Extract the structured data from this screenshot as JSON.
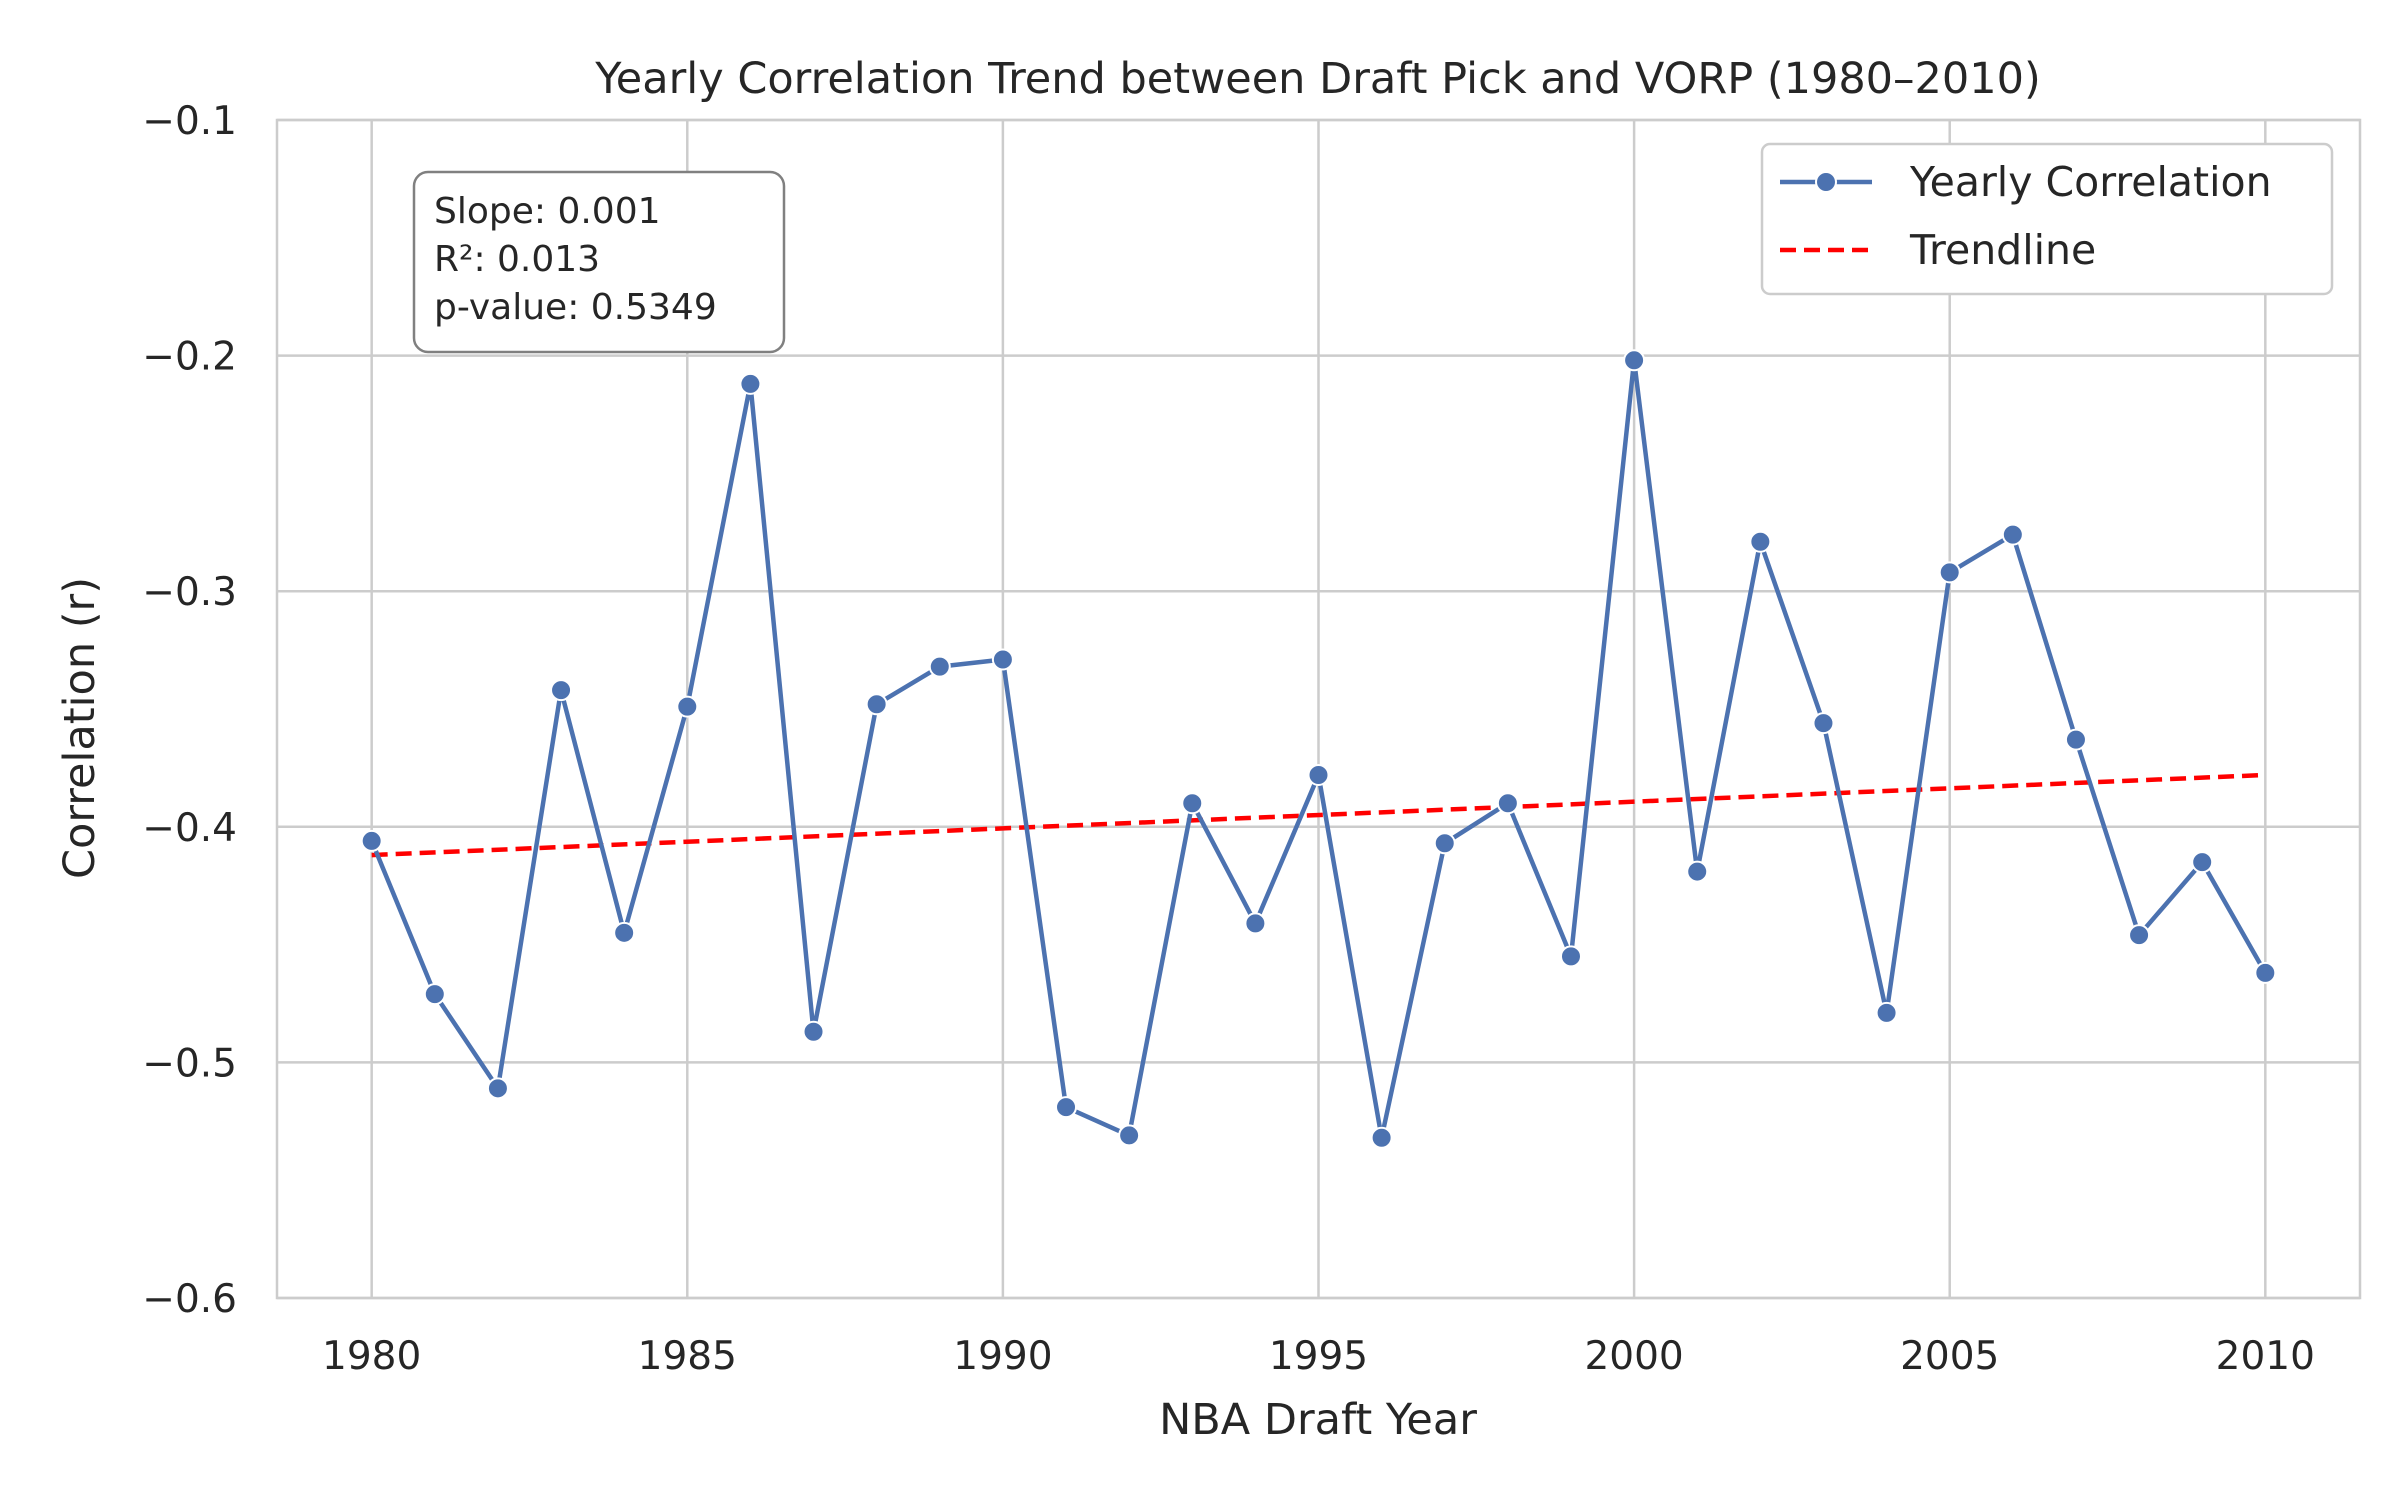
{
  "chart_data": {
    "type": "line",
    "title": "Yearly Correlation Trend between Draft Pick and VORP (1980–2010)",
    "xlabel": "NBA Draft Year",
    "ylabel": "Correlation (r)",
    "xlim": [
      1978.5,
      2011.5
    ],
    "ylim": [
      -0.6,
      -0.1
    ],
    "xticks": [
      1980,
      1985,
      1990,
      1995,
      2000,
      2005,
      2010
    ],
    "yticks": [
      -0.6,
      -0.5,
      -0.4,
      -0.3,
      -0.2,
      -0.1
    ],
    "yticklabels": [
      "−0.6",
      "−0.5",
      "−0.4",
      "−0.3",
      "−0.2",
      "−0.1"
    ],
    "grid": true,
    "legend_position": "top-right",
    "series": [
      {
        "name": "Yearly Correlation",
        "color": "#4c72b0",
        "marker": "circle",
        "x": [
          1980,
          1981,
          1982,
          1983,
          1984,
          1985,
          1986,
          1987,
          1988,
          1989,
          1990,
          1991,
          1992,
          1993,
          1994,
          1995,
          1996,
          1997,
          1998,
          1999,
          2000,
          2001,
          2002,
          2003,
          2004,
          2005,
          2006,
          2007,
          2008,
          2009,
          2010
        ],
        "values": [
          -0.406,
          -0.471,
          -0.511,
          -0.342,
          -0.445,
          -0.349,
          -0.212,
          -0.487,
          -0.348,
          -0.332,
          -0.329,
          -0.519,
          -0.531,
          -0.39,
          -0.441,
          -0.378,
          -0.532,
          -0.407,
          -0.39,
          -0.455,
          -0.202,
          -0.419,
          -0.279,
          -0.356,
          -0.479,
          -0.292,
          -0.276,
          -0.363,
          -0.446,
          -0.415,
          -0.462
        ]
      },
      {
        "name": "Trendline",
        "color": "#ff0000",
        "style": "dashed",
        "x": [
          1980,
          2010
        ],
        "values": [
          -0.412,
          -0.378
        ]
      }
    ],
    "annotation": {
      "lines": [
        "Slope: 0.001",
        "R²: 0.013",
        "p-value: 0.5349"
      ]
    }
  }
}
